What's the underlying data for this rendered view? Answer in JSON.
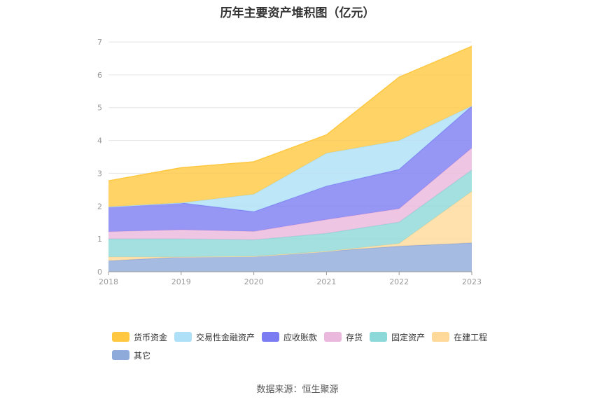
{
  "chart_data": {
    "type": "area",
    "stacked": true,
    "title": "历年主要资产堆积图（亿元）",
    "categories": [
      "2018",
      "2019",
      "2020",
      "2021",
      "2022",
      "2023"
    ],
    "ylim": [
      0,
      7
    ],
    "yticks": [
      "0",
      "1",
      "2",
      "3",
      "4",
      "5",
      "6",
      "7"
    ],
    "grid": true,
    "legend_position": "bottom",
    "series": [
      {
        "name": "其它",
        "color": "#8eaadb",
        "values": [
          0.33,
          0.45,
          0.47,
          0.62,
          0.78,
          0.88
        ]
      },
      {
        "name": "在建工程",
        "color": "#ffd99a",
        "values": [
          0.12,
          0.0,
          0.0,
          0.0,
          0.08,
          1.57
        ]
      },
      {
        "name": "固定资产",
        "color": "#8dd8d8",
        "values": [
          0.55,
          0.55,
          0.5,
          0.55,
          0.65,
          0.65
        ]
      },
      {
        "name": "存货",
        "color": "#eab8dc",
        "values": [
          0.22,
          0.28,
          0.26,
          0.42,
          0.41,
          0.67
        ]
      },
      {
        "name": "应收账款",
        "color": "#7c7cf2",
        "values": [
          0.76,
          0.82,
          0.6,
          1.02,
          1.2,
          1.28
        ]
      },
      {
        "name": "交易性金融资产",
        "color": "#aee0f8",
        "values": [
          0.0,
          0.0,
          0.53,
          1.0,
          0.88,
          0.0
        ]
      },
      {
        "name": "货币资金",
        "color": "#ffc840",
        "values": [
          0.79,
          1.07,
          0.99,
          0.56,
          1.93,
          1.82
        ]
      }
    ],
    "legend_order": [
      "货币资金",
      "交易性金融资产",
      "应收账款",
      "存货",
      "固定资产",
      "在建工程",
      "其它"
    ]
  },
  "source_text": "数据来源：恒生聚源"
}
